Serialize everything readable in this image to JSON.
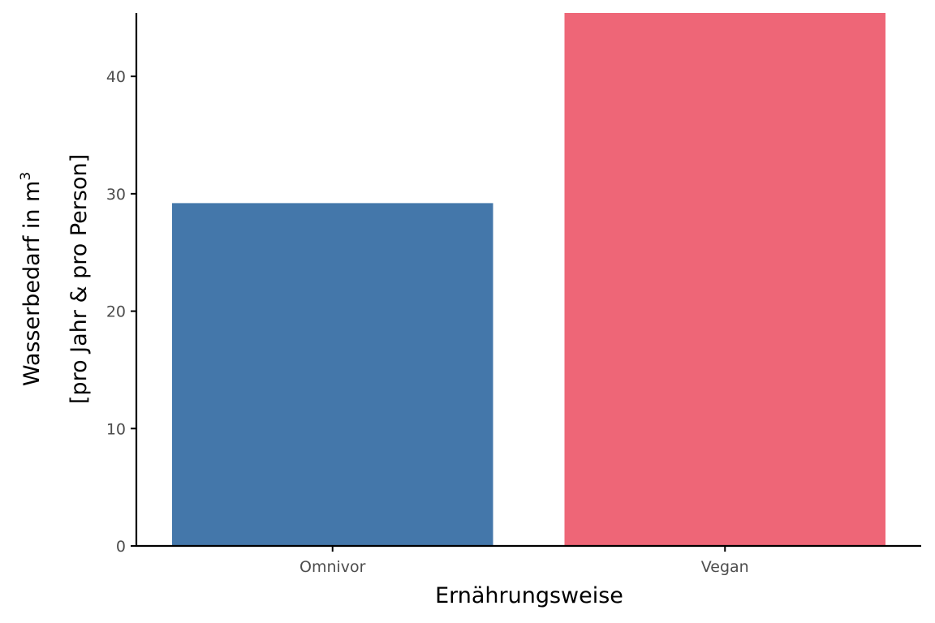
{
  "chart_data": {
    "type": "bar",
    "title": "",
    "xlabel": "Ernährungsweise",
    "ylabel_line1": "Wasserbedarf in  m",
    "ylabel_sup": "3",
    "ylabel_line2": "[pro Jahr & pro Person]",
    "categories": [
      "Omnivor",
      "Vegan"
    ],
    "values": [
      29.2,
      45.4
    ],
    "colors": [
      "#4477AA",
      "#EE6677"
    ],
    "ylim": [
      0,
      45.4
    ],
    "yticks": [
      0,
      10,
      20,
      30,
      40
    ],
    "grid": false,
    "legend": "none"
  }
}
